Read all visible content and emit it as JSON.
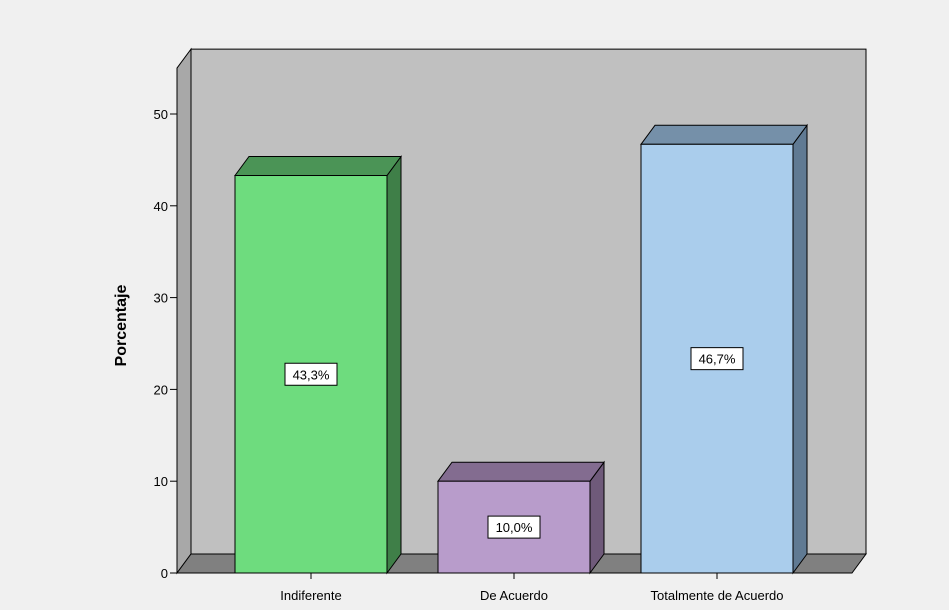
{
  "chart_data": {
    "type": "bar",
    "title": "",
    "xlabel": "",
    "ylabel": "Porcentaje",
    "ylim": [
      0,
      55
    ],
    "yticks": [
      0,
      10,
      20,
      30,
      40,
      50
    ],
    "categories": [
      "Indiferente",
      "De Acuerdo",
      "Totalmente de Acuerdo"
    ],
    "values": [
      43.3,
      10.0,
      46.7
    ],
    "data_labels": [
      "43,3%",
      "10,0%",
      "46,7%"
    ],
    "colors": [
      {
        "front": "#6edc7e",
        "side": "#3f7f48",
        "top": "#4b9456"
      },
      {
        "front": "#b89ccb",
        "side": "#6f5a7a",
        "top": "#836c90"
      },
      {
        "front": "#aacdec",
        "side": "#607a93",
        "top": "#7590a9"
      }
    ],
    "plot_background": "#c0c0c0",
    "floor_color": "#808080",
    "grid": false,
    "legend": "none"
  }
}
